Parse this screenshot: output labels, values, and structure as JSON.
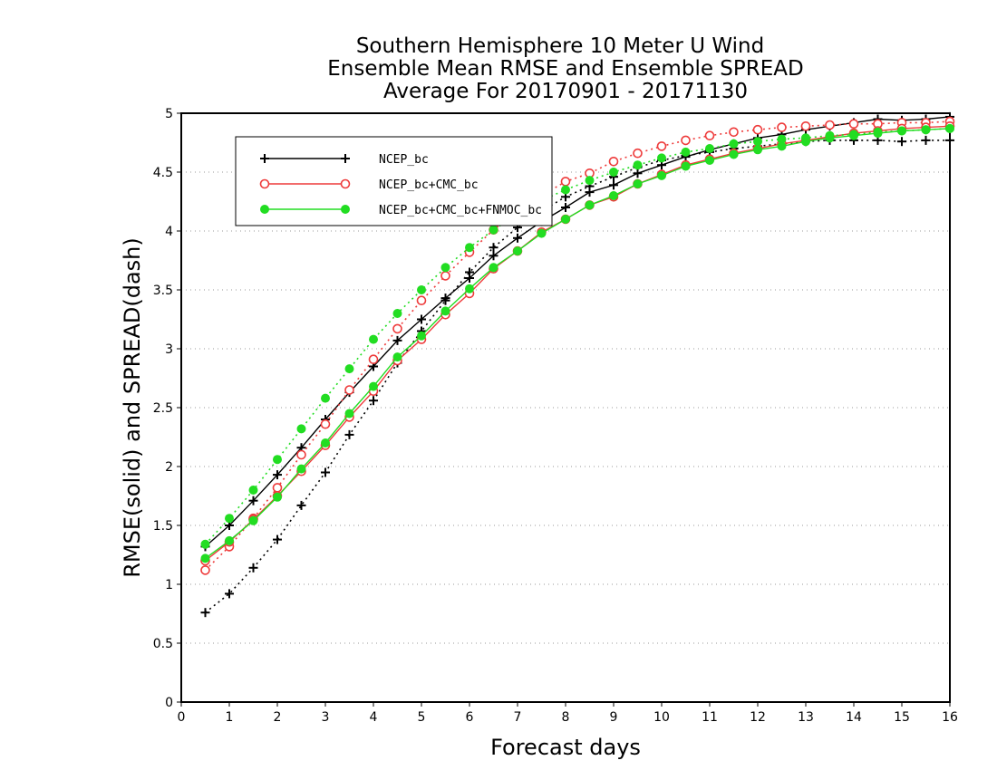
{
  "chart_data": {
    "type": "line",
    "title_lines": [
      "Southern Hemisphere 10 Meter U Wind",
      "Ensemble Mean RMSE and Ensemble SPREAD",
      "Average For 20170901 - 20171130"
    ],
    "xlabel": "Forecast days",
    "ylabel": "RMSE(solid) and SPREAD(dash)",
    "xlim": [
      0,
      16
    ],
    "ylim": [
      0,
      5
    ],
    "xticks": [
      "0",
      "1",
      "2",
      "3",
      "4",
      "5",
      "6",
      "7",
      "8",
      "9",
      "10",
      "11",
      "12",
      "13",
      "14",
      "15",
      "16"
    ],
    "yticks": [
      "0",
      "0.5",
      "1",
      "1.5",
      "2",
      "2.5",
      "3",
      "3.5",
      "4",
      "4.5",
      "5"
    ],
    "grid": "horizontal dotted",
    "legend_position": "top-left",
    "x": [
      0.5,
      1,
      1.5,
      2,
      2.5,
      3,
      3.5,
      4,
      4.5,
      5,
      5.5,
      6,
      6.5,
      7,
      7.5,
      8,
      8.5,
      9,
      9.5,
      10,
      10.5,
      11,
      11.5,
      12,
      12.5,
      13,
      13.5,
      14,
      14.5,
      15,
      15.5,
      16
    ],
    "series": [
      {
        "name": "NCEP_bc",
        "color": "#000000",
        "marker": "plus",
        "rmse": [
          1.32,
          1.5,
          1.71,
          1.93,
          2.16,
          2.4,
          2.63,
          2.85,
          3.07,
          3.25,
          3.43,
          3.6,
          3.79,
          3.94,
          4.08,
          4.2,
          4.33,
          4.39,
          4.49,
          4.56,
          4.63,
          4.69,
          4.74,
          4.79,
          4.82,
          4.86,
          4.89,
          4.92,
          4.95,
          4.94,
          4.95,
          4.97
        ],
        "spread": [
          0.76,
          0.92,
          1.14,
          1.38,
          1.67,
          1.95,
          2.27,
          2.56,
          2.88,
          3.15,
          3.41,
          3.65,
          3.86,
          4.03,
          4.17,
          4.29,
          4.38,
          4.46,
          4.54,
          4.6,
          4.64,
          4.67,
          4.7,
          4.72,
          4.74,
          4.76,
          4.77,
          4.77,
          4.77,
          4.76,
          4.77,
          4.77
        ]
      },
      {
        "name": "NCEP_bc+CMC_bc",
        "color": "#ee3b3b",
        "marker": "open-circle",
        "rmse": [
          1.2,
          1.36,
          1.55,
          1.75,
          1.96,
          2.18,
          2.42,
          2.64,
          2.9,
          3.08,
          3.29,
          3.47,
          3.68,
          3.83,
          3.99,
          4.1,
          4.22,
          4.29,
          4.4,
          4.48,
          4.56,
          4.61,
          4.66,
          4.7,
          4.74,
          4.77,
          4.8,
          4.83,
          4.85,
          4.87,
          4.88,
          4.89
        ],
        "spread": [
          1.12,
          1.32,
          1.56,
          1.82,
          2.1,
          2.36,
          2.65,
          2.91,
          3.17,
          3.41,
          3.62,
          3.82,
          4.01,
          4.17,
          4.3,
          4.42,
          4.49,
          4.59,
          4.66,
          4.72,
          4.77,
          4.81,
          4.84,
          4.86,
          4.88,
          4.89,
          4.9,
          4.91,
          4.91,
          4.92,
          4.92,
          4.93
        ]
      },
      {
        "name": "NCEP_bc+CMC_bc+FNMOC_bc",
        "color": "#22dd22",
        "marker": "filled-circle",
        "rmse": [
          1.22,
          1.37,
          1.54,
          1.74,
          1.98,
          2.2,
          2.45,
          2.68,
          2.93,
          3.11,
          3.32,
          3.51,
          3.69,
          3.83,
          3.98,
          4.1,
          4.22,
          4.3,
          4.4,
          4.47,
          4.55,
          4.6,
          4.65,
          4.69,
          4.72,
          4.76,
          4.79,
          4.81,
          4.83,
          4.85,
          4.86,
          4.87
        ],
        "spread": [
          1.34,
          1.56,
          1.8,
          2.06,
          2.32,
          2.58,
          2.83,
          3.08,
          3.3,
          3.5,
          3.69,
          3.86,
          4.01,
          4.14,
          4.26,
          4.35,
          4.43,
          4.5,
          4.56,
          4.62,
          4.67,
          4.7,
          4.74,
          4.76,
          4.78,
          4.79,
          4.81,
          4.82,
          4.84,
          4.85,
          4.86,
          4.87
        ]
      }
    ]
  }
}
